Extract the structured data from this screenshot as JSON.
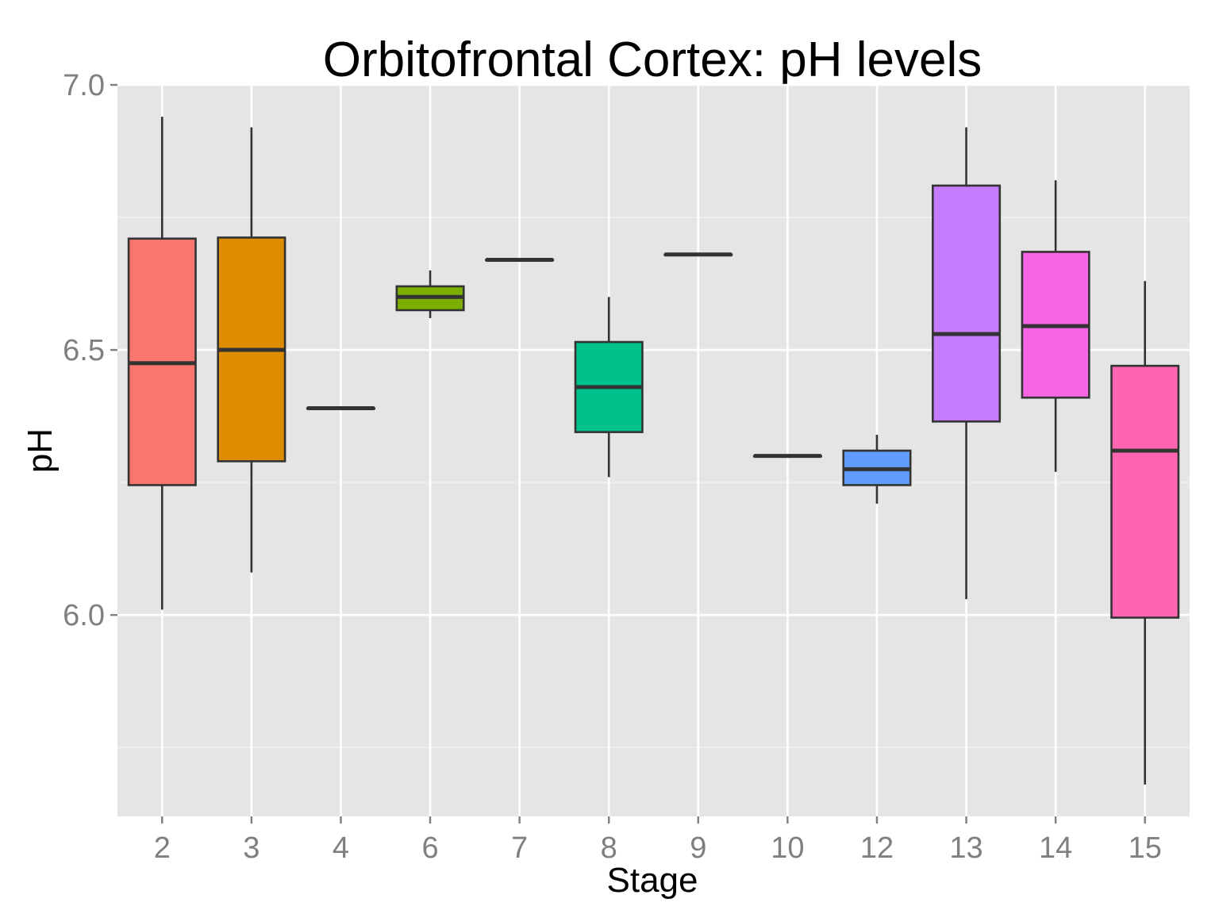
{
  "chart_data": {
    "type": "boxplot",
    "title": "Orbitofrontal Cortex: pH levels",
    "xlabel": "Stage",
    "ylabel": "pH",
    "ylim": [
      5.62,
      7.0
    ],
    "yticks": [
      "6.0",
      "6.5",
      "7.0"
    ],
    "y_minor_ticks": [
      5.75,
      6.25,
      6.75
    ],
    "grid": true,
    "legend": "none",
    "panel_background": "#e5e5e5",
    "grid_color": "#ffffff",
    "box_outline_color": "#333333",
    "categories": [
      "2",
      "3",
      "4",
      "6",
      "7",
      "8",
      "9",
      "10",
      "12",
      "13",
      "14",
      "15"
    ],
    "boxes": [
      {
        "stage": "2",
        "min": 6.01,
        "q1": 6.245,
        "median": 6.475,
        "q3": 6.71,
        "max": 6.94,
        "color": "#F8766D"
      },
      {
        "stage": "3",
        "min": 6.08,
        "q1": 6.29,
        "median": 6.5,
        "q3": 6.712,
        "max": 6.92,
        "color": "#DE8C00"
      },
      {
        "stage": "4",
        "min": 6.39,
        "q1": 6.39,
        "median": 6.39,
        "q3": 6.39,
        "max": 6.39,
        "color": "#B79F00"
      },
      {
        "stage": "6",
        "min": 6.56,
        "q1": 6.575,
        "median": 6.6,
        "q3": 6.62,
        "max": 6.65,
        "color": "#7CAE00"
      },
      {
        "stage": "7",
        "min": 6.67,
        "q1": 6.67,
        "median": 6.67,
        "q3": 6.67,
        "max": 6.67,
        "color": "#00BA38"
      },
      {
        "stage": "8",
        "min": 6.26,
        "q1": 6.345,
        "median": 6.43,
        "q3": 6.515,
        "max": 6.6,
        "color": "#00C08B"
      },
      {
        "stage": "9",
        "min": 6.68,
        "q1": 6.68,
        "median": 6.68,
        "q3": 6.68,
        "max": 6.68,
        "color": "#00BFC4"
      },
      {
        "stage": "10",
        "min": 6.3,
        "q1": 6.3,
        "median": 6.3,
        "q3": 6.3,
        "max": 6.3,
        "color": "#00B4F0"
      },
      {
        "stage": "12",
        "min": 6.21,
        "q1": 6.245,
        "median": 6.275,
        "q3": 6.31,
        "max": 6.34,
        "color": "#619CFF"
      },
      {
        "stage": "13",
        "min": 6.03,
        "q1": 6.365,
        "median": 6.53,
        "q3": 6.81,
        "max": 6.92,
        "color": "#C77CFF"
      },
      {
        "stage": "14",
        "min": 6.27,
        "q1": 6.41,
        "median": 6.545,
        "q3": 6.685,
        "max": 6.82,
        "color": "#F564E3"
      },
      {
        "stage": "15",
        "min": 5.68,
        "q1": 5.995,
        "median": 6.31,
        "q3": 6.47,
        "max": 6.63,
        "color": "#FF64B0"
      }
    ]
  }
}
